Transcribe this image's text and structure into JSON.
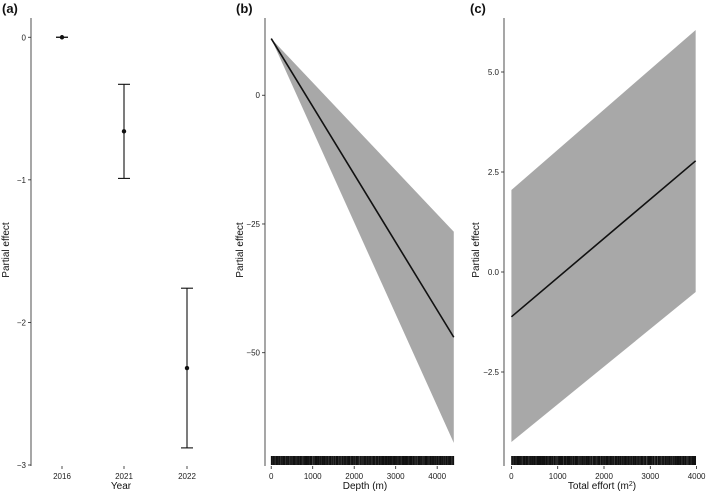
{
  "chart_data": [
    {
      "panel": "(a)",
      "type": "scatter",
      "xlabel": "Year",
      "ylabel": "Partial effect",
      "categories": [
        "2016",
        "2021",
        "2022"
      ],
      "estimates": [
        0,
        -0.66,
        -2.32
      ],
      "lower": [
        0,
        -0.99,
        -2.88
      ],
      "upper": [
        0,
        -0.33,
        -1.76
      ],
      "ylim": [
        -3,
        0.1
      ],
      "yticks": [
        0,
        -1,
        -2,
        -3
      ],
      "ytick_labels": [
        "0",
        "−1",
        "−2",
        "−3"
      ]
    },
    {
      "panel": "(b)",
      "type": "line",
      "xlabel": "Depth (m)",
      "ylabel": "Partial effect",
      "x": [
        0,
        4400
      ],
      "fit": [
        11,
        -47
      ],
      "band_upper": [
        11,
        -26.5
      ],
      "band_lower": [
        11,
        -67.5
      ],
      "xlim": [
        -150,
        4550
      ],
      "ylim": [
        -72,
        15
      ],
      "xticks": [
        0,
        1000,
        2000,
        3000,
        4000
      ],
      "xtick_labels": [
        "0",
        "1000",
        "2000",
        "3000",
        "4000"
      ],
      "yticks": [
        0,
        -25,
        -50
      ],
      "ytick_labels": [
        "0",
        "−25",
        "−50"
      ],
      "rug": true
    },
    {
      "panel": "(c)",
      "type": "line",
      "xlabel": "Total effort (m²)",
      "ylabel": "Partial effect",
      "x": [
        0,
        3980
      ],
      "fit": [
        -1.12,
        2.78
      ],
      "band_upper": [
        2.05,
        6.05
      ],
      "band_lower": [
        -4.25,
        -0.5
      ],
      "xlim": [
        -160,
        4160
      ],
      "ylim": [
        -4.85,
        6.35
      ],
      "xticks": [
        0,
        1000,
        2000,
        3000,
        4000
      ],
      "xtick_labels": [
        "0",
        "1000",
        "2000",
        "3000",
        "4000"
      ],
      "yticks": [
        5,
        2.5,
        0,
        -2.5
      ],
      "ytick_labels": [
        "5.0",
        "2.5",
        "0.0",
        "−2.5"
      ],
      "rug": true
    }
  ],
  "style": {
    "band_color": "#a8a8a8",
    "line_color": "#111111",
    "axis_color": "#222222"
  }
}
